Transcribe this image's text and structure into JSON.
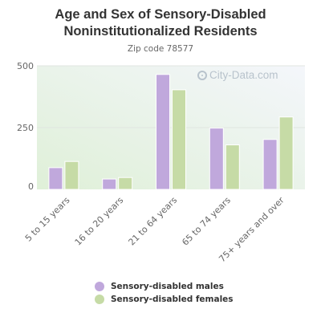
{
  "title_line1": "Age and Sex of Sensory-Disabled",
  "title_line2": "Noninstitutionalized Residents",
  "subtitle": "Zip code 78577",
  "watermark": "City-Data.com",
  "colors": {
    "males": "#c0a8dc",
    "females": "#c6dba6",
    "grid": "#e0e6e0",
    "bg_gradient_start": "#dff0d8",
    "bg_gradient_end": "#f4f6fb"
  },
  "legend": {
    "males_label": "Sensory-disabled males",
    "females_label": "Sensory-disabled females"
  },
  "chart_data": {
    "type": "bar",
    "title": "Age and Sex of Sensory-Disabled Noninstitutionalized Residents",
    "subtitle": "Zip code 78577",
    "categories": [
      "5 to 15 years",
      "16 to 20 years",
      "21 to 64 years",
      "65 to 74 years",
      "75+ years and over"
    ],
    "series": [
      {
        "name": "Sensory-disabled males",
        "values": [
          88,
          42,
          465,
          248,
          202
        ]
      },
      {
        "name": "Sensory-disabled females",
        "values": [
          113,
          48,
          403,
          180,
          293
        ]
      }
    ],
    "yticks": [
      0,
      250,
      500
    ],
    "ylim": [
      0,
      500
    ],
    "grid": true,
    "legend_position": "bottom"
  }
}
